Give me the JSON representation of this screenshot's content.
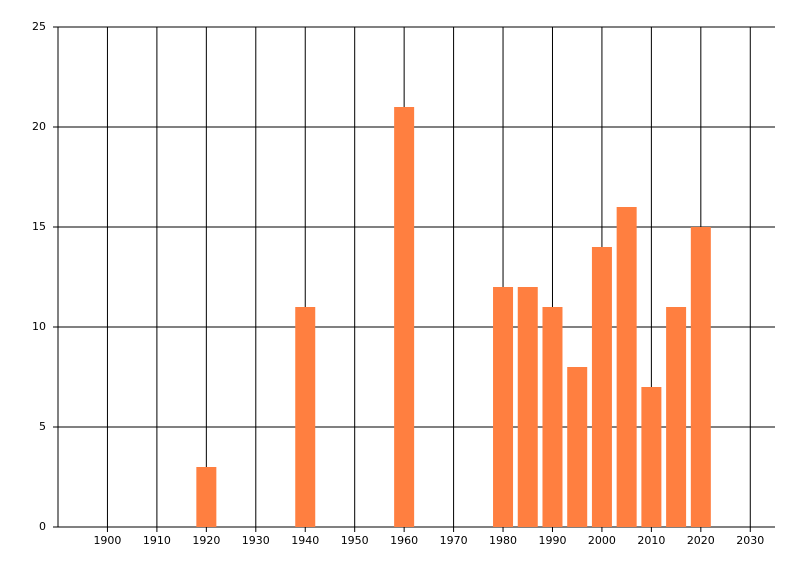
{
  "chart_data": {
    "type": "bar",
    "x": [
      1920,
      1940,
      1960,
      1980,
      1985,
      1990,
      1995,
      2000,
      2005,
      2010,
      2015,
      2020
    ],
    "values": [
      3,
      11,
      21,
      12,
      12,
      11,
      8,
      14,
      16,
      7,
      11,
      15
    ],
    "color": "#ff7f40",
    "xlim": [
      1890,
      2035
    ],
    "xticks": [
      1900,
      1910,
      1920,
      1930,
      1940,
      1950,
      1960,
      1970,
      1980,
      1990,
      2000,
      2010,
      2020,
      2030
    ],
    "ylim": [
      0,
      25
    ],
    "yticks": [
      0,
      5,
      10,
      15,
      20,
      25
    ],
    "grid": true
  }
}
